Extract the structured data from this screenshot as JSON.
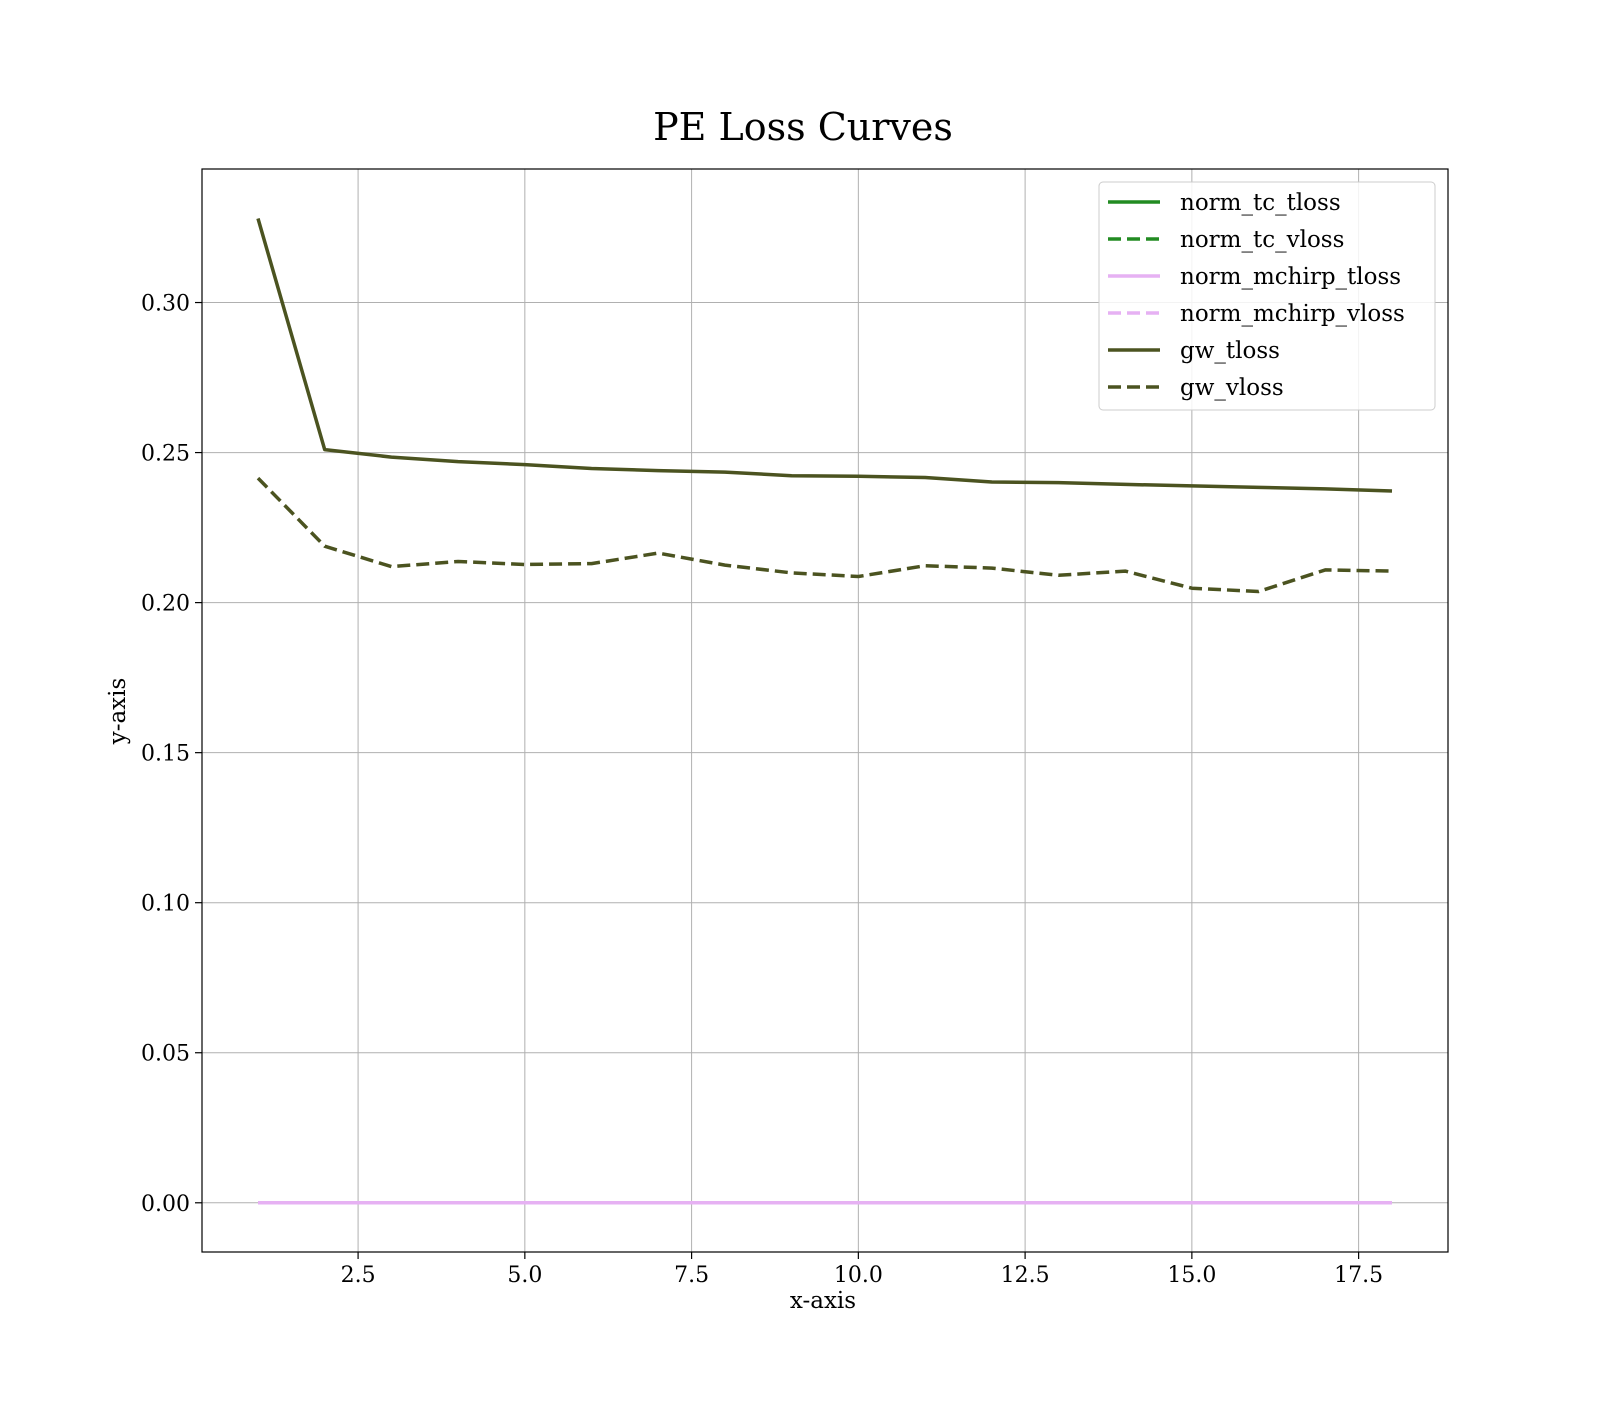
{
  "chart_data": {
    "type": "line",
    "title": "PE Loss Curves",
    "xlabel": "x-axis",
    "ylabel": "y-axis",
    "xlim": [
      0.16,
      18.84
    ],
    "ylim": [
      -0.0164,
      0.3445
    ],
    "xticks": [
      2.5,
      5.0,
      7.5,
      10.0,
      12.5,
      15.0,
      17.5
    ],
    "xtick_labels": [
      "2.5",
      "5.0",
      "7.5",
      "10.0",
      "12.5",
      "15.0",
      "17.5"
    ],
    "yticks": [
      0.0,
      0.05,
      0.1,
      0.15,
      0.2,
      0.25,
      0.3
    ],
    "ytick_labels": [
      "0.00",
      "0.05",
      "0.10",
      "0.15",
      "0.20",
      "0.25",
      "0.30"
    ],
    "grid": true,
    "legend_position": "top-right",
    "x": [
      1,
      2,
      3,
      4,
      5,
      6,
      7,
      8,
      9,
      10,
      11,
      12,
      13,
      14,
      15,
      16,
      17,
      18
    ],
    "series": [
      {
        "name": "norm_tc_tloss",
        "color": "#228b22",
        "dash": "solid",
        "values": [
          0,
          0,
          0,
          0,
          0,
          0,
          0,
          0,
          0,
          0,
          0,
          0,
          0,
          0,
          0,
          0,
          0,
          0
        ]
      },
      {
        "name": "norm_tc_vloss",
        "color": "#228b22",
        "dash": "dashed",
        "values": [
          0,
          0,
          0,
          0,
          0,
          0,
          0,
          0,
          0,
          0,
          0,
          0,
          0,
          0,
          0,
          0,
          0,
          0
        ]
      },
      {
        "name": "norm_mchirp_tloss",
        "color": "#e6b1f3",
        "dash": "solid",
        "values": [
          0,
          0,
          0,
          0,
          0,
          0,
          0,
          0,
          0,
          0,
          0,
          0,
          0,
          0,
          0,
          0,
          0,
          0
        ]
      },
      {
        "name": "norm_mchirp_vloss",
        "color": "#e6b1f3",
        "dash": "dashed",
        "values": [
          0,
          0,
          0,
          0,
          0,
          0,
          0,
          0,
          0,
          0,
          0,
          0,
          0,
          0,
          0,
          0,
          0,
          0
        ]
      },
      {
        "name": "gw_tloss",
        "color": "#4b5320",
        "dash": "solid",
        "values": [
          0.328,
          0.251,
          0.2485,
          0.247,
          0.246,
          0.2447,
          0.244,
          0.2435,
          0.2423,
          0.2421,
          0.2417,
          0.2402,
          0.24,
          0.2394,
          0.2389,
          0.2384,
          0.2379,
          0.2372
        ]
      },
      {
        "name": "gw_vloss",
        "color": "#4b5320",
        "dash": "dashed",
        "values": [
          0.2415,
          0.2188,
          0.212,
          0.2137,
          0.2127,
          0.213,
          0.2165,
          0.2125,
          0.2099,
          0.2087,
          0.2123,
          0.2115,
          0.2091,
          0.2105,
          0.2048,
          0.2037,
          0.2109,
          0.2105
        ]
      }
    ]
  }
}
